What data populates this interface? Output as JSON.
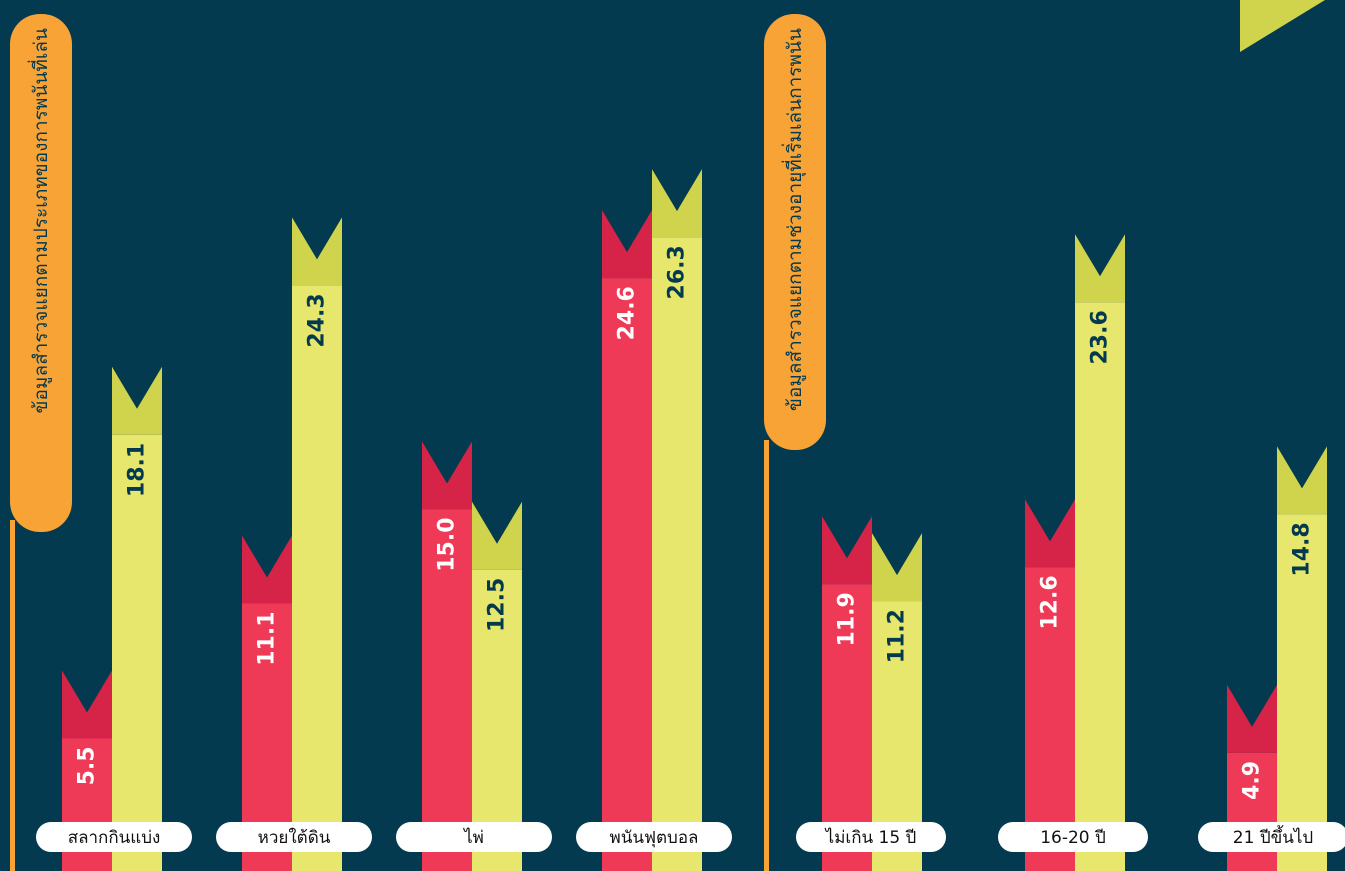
{
  "colors": {
    "background": "#033a4f",
    "red_bar": "#ee3957",
    "red_flag": "#d62348",
    "yellow_bar": "#e7e76d",
    "yellow_flag": "#cfd44c",
    "label_tab": "#f8a336",
    "pill": "#ffffff",
    "value_light": "#ffffff",
    "value_dark": "#033a4f"
  },
  "chart_data": [
    {
      "type": "bar",
      "title": "ข้อมูลสำรวจแยกตามประเภทของการพนันที่เล่น",
      "categories": [
        "สลากกินแบ่ง",
        "หวยใต้ดิน",
        "ไพ่",
        "พนันฟุตบอล"
      ],
      "series": [
        {
          "color": "#ee3957",
          "values": [
            5.5,
            11.1,
            15.0,
            24.6
          ],
          "labels": [
            "5.5",
            "11.1",
            "15.0",
            "24.6"
          ]
        },
        {
          "color": "#e7e76d",
          "values": [
            18.1,
            24.3,
            12.5,
            26.3
          ],
          "labels": [
            "18.1",
            "24.3",
            "12.5",
            "26.3"
          ]
        }
      ]
    },
    {
      "type": "bar",
      "title": "ข้อมูลสำรวจแยกตามช่วงอายุที่เริ่มเล่นการพนัน",
      "categories": [
        "ไม่เกิน 15 ปี",
        "16-20 ปี",
        "21 ปีขึ้นไป"
      ],
      "series": [
        {
          "color": "#ee3957",
          "values": [
            11.9,
            12.6,
            4.9
          ],
          "labels": [
            "11.9",
            "12.6",
            "4.9"
          ]
        },
        {
          "color": "#e7e76d",
          "values": [
            11.2,
            23.6,
            14.8
          ],
          "labels": [
            "11.2",
            "23.6",
            "14.8"
          ]
        }
      ]
    }
  ]
}
